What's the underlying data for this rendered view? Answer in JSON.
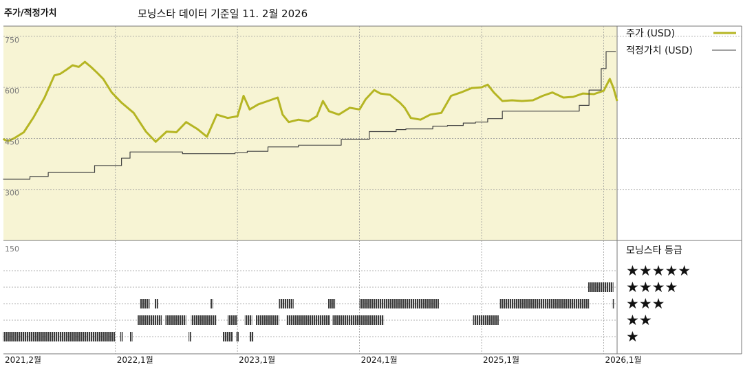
{
  "header": {
    "title": "주가/적정가치",
    "subtitle": "모닝스타 데이터 기준일 11. 2월 2026"
  },
  "legend": {
    "price_label": "주가 (USD)",
    "fair_label": "적정가치 (USD)",
    "rating_title": "모닝스타 등급",
    "star_rows": [
      "★★★★★",
      "★★★★",
      "★★★",
      "★★",
      "★"
    ]
  },
  "colors": {
    "price": "#b5b523",
    "fair": "#444444",
    "upper_bg": "#f7f4d4",
    "rating_mark": "#3a3a3a",
    "grid": "#999999"
  },
  "chart_data": {
    "type": "line",
    "x_range": [
      "2021-02",
      "2026-02"
    ],
    "ylim": [
      300,
      750
    ],
    "y_ticks": [
      "750",
      "600",
      "450",
      "300"
    ],
    "lower_axis_label": "150",
    "x_ticks": [
      {
        "year": 2021.083,
        "label": "2021,2월"
      },
      {
        "year": 2022.0,
        "label": "2022,1월"
      },
      {
        "year": 2023.0,
        "label": "2023,1월"
      },
      {
        "year": 2024.0,
        "label": "2024,1월"
      },
      {
        "year": 2025.0,
        "label": "2025,1월"
      },
      {
        "year": 2026.0,
        "label": "2026,1월"
      }
    ],
    "series": [
      {
        "name": "주가 (USD)",
        "points": [
          [
            2021.08,
            448
          ],
          [
            2021.12,
            442
          ],
          [
            2021.17,
            450
          ],
          [
            2021.25,
            468
          ],
          [
            2021.33,
            512
          ],
          [
            2021.42,
            570
          ],
          [
            2021.5,
            635
          ],
          [
            2021.55,
            640
          ],
          [
            2021.6,
            652
          ],
          [
            2021.65,
            665
          ],
          [
            2021.7,
            660
          ],
          [
            2021.75,
            675
          ],
          [
            2021.8,
            660
          ],
          [
            2021.85,
            643
          ],
          [
            2021.9,
            625
          ],
          [
            2021.97,
            585
          ],
          [
            2022.05,
            555
          ],
          [
            2022.15,
            525
          ],
          [
            2022.25,
            470
          ],
          [
            2022.33,
            440
          ],
          [
            2022.42,
            470
          ],
          [
            2022.5,
            468
          ],
          [
            2022.58,
            498
          ],
          [
            2022.67,
            478
          ],
          [
            2022.75,
            455
          ],
          [
            2022.83,
            520
          ],
          [
            2022.92,
            510
          ],
          [
            2023.0,
            515
          ],
          [
            2023.05,
            575
          ],
          [
            2023.1,
            535
          ],
          [
            2023.17,
            550
          ],
          [
            2023.25,
            560
          ],
          [
            2023.33,
            570
          ],
          [
            2023.37,
            520
          ],
          [
            2023.42,
            498
          ],
          [
            2023.5,
            505
          ],
          [
            2023.58,
            500
          ],
          [
            2023.65,
            515
          ],
          [
            2023.7,
            560
          ],
          [
            2023.75,
            530
          ],
          [
            2023.83,
            520
          ],
          [
            2023.92,
            540
          ],
          [
            2024.0,
            535
          ],
          [
            2024.05,
            565
          ],
          [
            2024.12,
            592
          ],
          [
            2024.17,
            582
          ],
          [
            2024.25,
            578
          ],
          [
            2024.33,
            555
          ],
          [
            2024.37,
            540
          ],
          [
            2024.42,
            510
          ],
          [
            2024.5,
            505
          ],
          [
            2024.58,
            520
          ],
          [
            2024.67,
            525
          ],
          [
            2024.75,
            575
          ],
          [
            2024.83,
            585
          ],
          [
            2024.92,
            598
          ],
          [
            2025.0,
            600
          ],
          [
            2025.05,
            608
          ],
          [
            2025.1,
            585
          ],
          [
            2025.17,
            560
          ],
          [
            2025.25,
            562
          ],
          [
            2025.33,
            560
          ],
          [
            2025.42,
            562
          ],
          [
            2025.5,
            575
          ],
          [
            2025.58,
            585
          ],
          [
            2025.67,
            570
          ],
          [
            2025.75,
            572
          ],
          [
            2025.83,
            582
          ],
          [
            2025.92,
            580
          ],
          [
            2026.0,
            590
          ],
          [
            2026.05,
            625
          ],
          [
            2026.08,
            598
          ],
          [
            2026.11,
            560
          ]
        ]
      },
      {
        "name": "적정가치 (USD)",
        "points": [
          [
            2021.08,
            330
          ],
          [
            2021.3,
            330
          ],
          [
            2021.3,
            338
          ],
          [
            2021.45,
            338
          ],
          [
            2021.45,
            350
          ],
          [
            2021.83,
            350
          ],
          [
            2021.83,
            370
          ],
          [
            2022.05,
            370
          ],
          [
            2022.05,
            392
          ],
          [
            2022.12,
            392
          ],
          [
            2022.12,
            410
          ],
          [
            2022.55,
            410
          ],
          [
            2022.55,
            405
          ],
          [
            2022.98,
            405
          ],
          [
            2022.98,
            408
          ],
          [
            2023.08,
            408
          ],
          [
            2023.08,
            412
          ],
          [
            2023.25,
            412
          ],
          [
            2023.25,
            425
          ],
          [
            2023.5,
            425
          ],
          [
            2023.5,
            430
          ],
          [
            2023.85,
            430
          ],
          [
            2023.85,
            447
          ],
          [
            2024.08,
            447
          ],
          [
            2024.08,
            470
          ],
          [
            2024.3,
            470
          ],
          [
            2024.3,
            476
          ],
          [
            2024.38,
            476
          ],
          [
            2024.38,
            478
          ],
          [
            2024.6,
            478
          ],
          [
            2024.6,
            486
          ],
          [
            2024.72,
            486
          ],
          [
            2024.72,
            488
          ],
          [
            2024.85,
            488
          ],
          [
            2024.85,
            495
          ],
          [
            2024.95,
            495
          ],
          [
            2024.95,
            498
          ],
          [
            2025.05,
            498
          ],
          [
            2025.05,
            508
          ],
          [
            2025.17,
            508
          ],
          [
            2025.17,
            530
          ],
          [
            2025.8,
            530
          ],
          [
            2025.8,
            547
          ],
          [
            2025.88,
            547
          ],
          [
            2025.88,
            592
          ],
          [
            2025.98,
            592
          ],
          [
            2025.98,
            655
          ],
          [
            2026.02,
            655
          ],
          [
            2026.02,
            705
          ],
          [
            2026.1,
            705
          ]
        ]
      }
    ],
    "rating_periods": [
      {
        "stars": 1,
        "ranges": [
          [
            2021.08,
            2022.0
          ],
          [
            2022.04,
            2022.06
          ],
          [
            2022.12,
            2022.14
          ],
          [
            2022.6,
            2022.62
          ],
          [
            2022.88,
            2022.96
          ],
          [
            2022.99,
            2023.01
          ],
          [
            2023.1,
            2023.13
          ]
        ]
      },
      {
        "stars": 2,
        "ranges": [
          [
            2022.18,
            2022.38
          ],
          [
            2022.41,
            2022.58
          ],
          [
            2022.62,
            2022.83
          ],
          [
            2022.92,
            2023.0
          ],
          [
            2023.06,
            2023.12
          ],
          [
            2023.15,
            2023.34
          ],
          [
            2023.4,
            2023.76
          ],
          [
            2023.78,
            2024.2
          ],
          [
            2024.93,
            2025.14
          ]
        ]
      },
      {
        "stars": 3,
        "ranges": [
          [
            2022.2,
            2022.28
          ],
          [
            2022.32,
            2022.35
          ],
          [
            2022.78,
            2022.8
          ],
          [
            2023.34,
            2023.46
          ],
          [
            2023.74,
            2023.8
          ],
          [
            2024.0,
            2024.65
          ],
          [
            2025.15,
            2025.88
          ],
          [
            2026.07,
            2026.08
          ]
        ]
      },
      {
        "stars": 4,
        "ranges": [
          [
            2025.87,
            2026.08
          ]
        ]
      },
      {
        "stars": 5,
        "ranges": []
      }
    ]
  }
}
